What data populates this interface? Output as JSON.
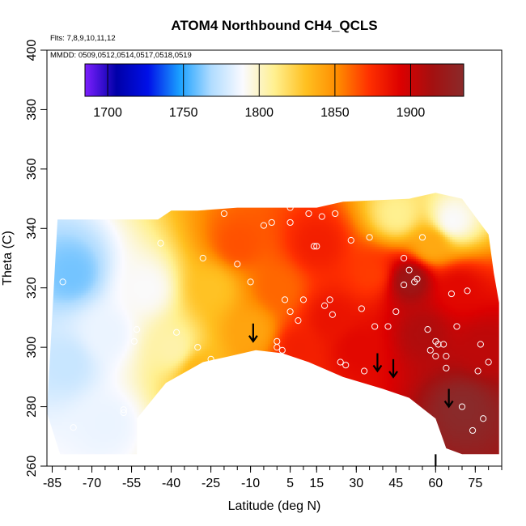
{
  "chart_data": {
    "type": "heatmap",
    "title": "ATOM4 Northbound CH4_QCLS",
    "xlabel": "Latitude (deg N)",
    "ylabel": "Theta (C)",
    "flights_label": "Flts: 7,8,9,10,11,12",
    "dates_label": "MMDD: 0509,0512,0514,0517,0518,0519",
    "xlim": [
      -87,
      85
    ],
    "ylim": [
      260,
      400
    ],
    "x_ticks": [
      -85,
      -70,
      -55,
      -40,
      -25,
      -10,
      5,
      15,
      30,
      45,
      60,
      75
    ],
    "x_minor_step": 5,
    "y_ticks": [
      260,
      280,
      300,
      320,
      340,
      360,
      380,
      400
    ],
    "colorbar": {
      "range": [
        1685,
        1935
      ],
      "ticks": [
        1700,
        1750,
        1800,
        1850,
        1900
      ],
      "colors": [
        "#7d1fff",
        "#0000a8",
        "#0010e8",
        "#1aa0ff",
        "#b0dcff",
        "#fafaff",
        "#fff090",
        "#ffc020",
        "#ff8c00",
        "#ff3000",
        "#dc0000",
        "#a41010",
        "#8a2a2a"
      ]
    },
    "coverage_top": [
      [
        -83,
        343
      ],
      [
        -45,
        343
      ],
      [
        -40,
        346
      ],
      [
        -30,
        346
      ],
      [
        -15,
        347
      ],
      [
        15,
        347
      ],
      [
        25,
        349
      ],
      [
        50,
        350
      ],
      [
        60,
        352
      ],
      [
        70,
        350
      ],
      [
        75,
        344
      ],
      [
        80,
        338
      ],
      [
        82,
        325
      ],
      [
        84,
        315
      ]
    ],
    "coverage_bottom": [
      [
        -87,
        278
      ],
      [
        -82,
        264
      ],
      [
        -53,
        264
      ],
      [
        -53,
        276
      ],
      [
        -42,
        288
      ],
      [
        -28,
        295
      ],
      [
        -18,
        297
      ],
      [
        -8,
        299
      ],
      [
        2,
        298
      ],
      [
        12,
        295
      ],
      [
        25,
        290
      ],
      [
        40,
        286
      ],
      [
        50,
        283
      ],
      [
        60,
        276
      ],
      [
        64,
        266
      ],
      [
        70,
        264
      ],
      [
        84,
        264
      ]
    ],
    "field_centers": [
      {
        "lat": -78,
        "theta": 325,
        "ch4": 1760
      },
      {
        "lat": -80,
        "theta": 295,
        "ch4": 1775
      },
      {
        "lat": -65,
        "theta": 305,
        "ch4": 1785
      },
      {
        "lat": -65,
        "theta": 275,
        "ch4": 1785
      },
      {
        "lat": -50,
        "theta": 320,
        "ch4": 1790
      },
      {
        "lat": -40,
        "theta": 300,
        "ch4": 1805
      },
      {
        "lat": -30,
        "theta": 292,
        "ch4": 1835
      },
      {
        "lat": -25,
        "theta": 320,
        "ch4": 1830
      },
      {
        "lat": -15,
        "theta": 335,
        "ch4": 1865
      },
      {
        "lat": -10,
        "theta": 306,
        "ch4": 1842
      },
      {
        "lat": 0,
        "theta": 320,
        "ch4": 1860
      },
      {
        "lat": 8,
        "theta": 300,
        "ch4": 1880
      },
      {
        "lat": 15,
        "theta": 335,
        "ch4": 1880
      },
      {
        "lat": 20,
        "theta": 310,
        "ch4": 1885
      },
      {
        "lat": 30,
        "theta": 300,
        "ch4": 1890
      },
      {
        "lat": 35,
        "theta": 325,
        "ch4": 1870
      },
      {
        "lat": 45,
        "theta": 345,
        "ch4": 1810
      },
      {
        "lat": 50,
        "theta": 323,
        "ch4": 1920
      },
      {
        "lat": 55,
        "theta": 305,
        "ch4": 1910
      },
      {
        "lat": 58,
        "theta": 335,
        "ch4": 1840
      },
      {
        "lat": 66,
        "theta": 343,
        "ch4": 1790
      },
      {
        "lat": 68,
        "theta": 320,
        "ch4": 1890
      },
      {
        "lat": 70,
        "theta": 280,
        "ch4": 1935
      },
      {
        "lat": 78,
        "theta": 300,
        "ch4": 1905
      }
    ],
    "samples": [
      [
        -86,
        329
      ],
      [
        -81,
        322
      ],
      [
        -77,
        273
      ],
      [
        -53,
        306
      ],
      [
        -54,
        302
      ],
      [
        -44,
        335
      ],
      [
        -38,
        305
      ],
      [
        -50,
        276
      ],
      [
        -58,
        279
      ],
      [
        -58,
        278
      ],
      [
        -35,
        290
      ],
      [
        -30,
        300
      ],
      [
        -28,
        330
      ],
      [
        -25,
        296
      ],
      [
        -20,
        345
      ],
      [
        -15,
        328
      ],
      [
        -12,
        350
      ],
      [
        -10,
        322
      ],
      [
        -5,
        341
      ],
      [
        -2,
        342
      ],
      [
        0,
        302
      ],
      [
        0,
        300
      ],
      [
        2,
        299
      ],
      [
        3,
        316
      ],
      [
        5,
        342
      ],
      [
        5,
        347
      ],
      [
        5,
        312
      ],
      [
        8,
        309
      ],
      [
        10,
        316
      ],
      [
        12,
        345
      ],
      [
        14,
        334
      ],
      [
        15,
        334
      ],
      [
        17,
        344
      ],
      [
        18,
        314
      ],
      [
        20,
        316
      ],
      [
        21,
        311
      ],
      [
        22,
        345
      ],
      [
        24,
        295
      ],
      [
        26,
        294
      ],
      [
        28,
        336
      ],
      [
        32,
        313
      ],
      [
        33,
        292
      ],
      [
        35,
        337
      ],
      [
        37,
        307
      ],
      [
        42,
        307
      ],
      [
        45,
        312
      ],
      [
        48,
        330
      ],
      [
        48,
        321
      ],
      [
        50,
        326
      ],
      [
        52,
        322
      ],
      [
        53,
        323
      ],
      [
        55,
        337
      ],
      [
        57,
        306
      ],
      [
        58,
        299
      ],
      [
        60,
        297
      ],
      [
        60,
        302
      ],
      [
        61,
        301
      ],
      [
        63,
        301
      ],
      [
        64,
        297
      ],
      [
        64,
        293
      ],
      [
        66,
        318
      ],
      [
        68,
        307
      ],
      [
        70,
        280
      ],
      [
        72,
        319
      ],
      [
        74,
        272
      ],
      [
        76,
        292
      ],
      [
        77,
        301
      ],
      [
        78,
        276
      ],
      [
        80,
        295
      ]
    ],
    "markers": [
      {
        "lat": -9,
        "theta": 302
      },
      {
        "lat": 38,
        "theta": 292
      },
      {
        "lat": 44,
        "theta": 290
      },
      {
        "lat": 65,
        "theta": 280
      },
      {
        "lat": 60,
        "theta": 258
      }
    ],
    "colors": {
      "frame": "#000000",
      "marker": "#000000",
      "sample_ring": "#ffffff"
    }
  }
}
